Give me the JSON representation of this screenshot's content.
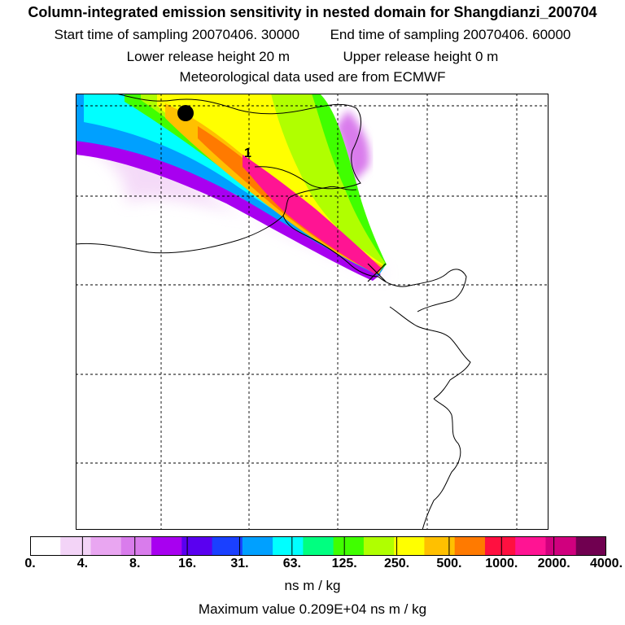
{
  "header": {
    "title": "Column-integrated emission sensitivity in nested domain for Shangdianzi_200704",
    "start_label": "Start time of sampling 20070406. 30000",
    "end_label": "End time of sampling 20070406. 60000",
    "lower_release": "Lower release height   20 m",
    "upper_release": "Upper release height    0 m",
    "met_data": "Meteorological data used are from ECMWF"
  },
  "chart_data": {
    "type": "heatmap",
    "title": "Column-integrated emission sensitivity in nested domain for Shangdianzi_200704",
    "colorbar_label": "ns m / kg",
    "color_levels": [
      0,
      4,
      8,
      16,
      31,
      63,
      125,
      250,
      500,
      1000,
      2000,
      4000
    ],
    "tick_labels": [
      "0.",
      "4.",
      "8.",
      "16.",
      "31.",
      "63.",
      "125.",
      "250.",
      "500.",
      "1000.",
      "2000.",
      "4000."
    ],
    "colors": [
      "#ffffff",
      "#f3d4f7",
      "#e9a6f1",
      "#d97cec",
      "#a800f0",
      "#5a00f0",
      "#1a40ff",
      "#00a0ff",
      "#00ffff",
      "#00ff80",
      "#40ff00",
      "#b0ff00",
      "#ffff00",
      "#ffc000",
      "#ff7a00",
      "#ff1040",
      "#ff1493",
      "#d0007e",
      "#700050"
    ],
    "max_value": "Maximum value  0.209E+04 ns m / kg",
    "release_marker_label": "1",
    "grid": true
  }
}
